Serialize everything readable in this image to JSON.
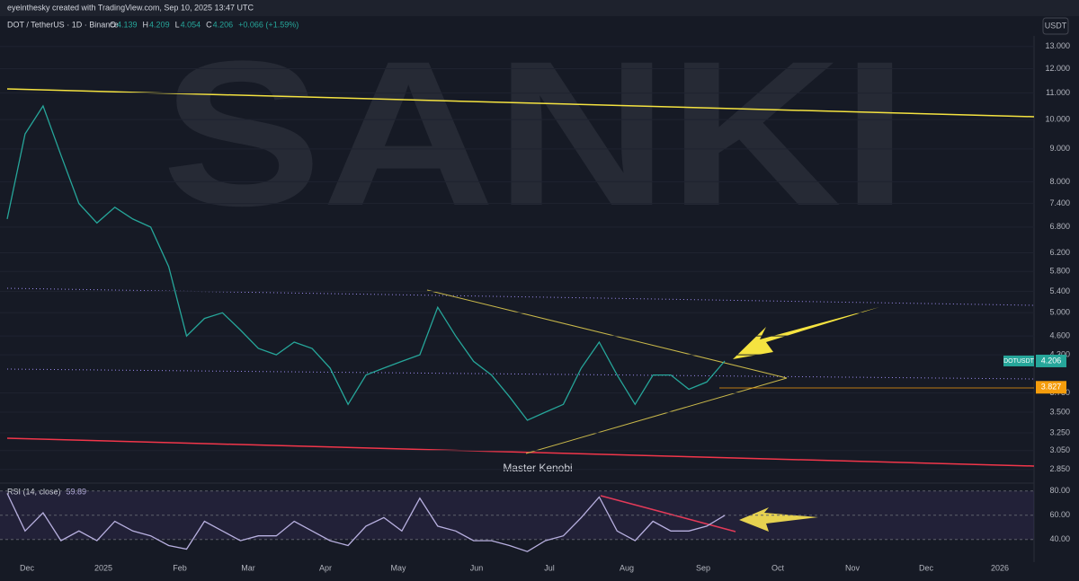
{
  "header": {
    "credit": "eyeinthesky created with TradingView.com, Sep 10, 2025 13:47 UTC",
    "symbol": "DOT / TetherUS · 1D · Binance",
    "ohlc": [
      {
        "label": "O",
        "value": "4.139"
      },
      {
        "label": "H",
        "value": "4.209"
      },
      {
        "label": "L",
        "value": "4.054"
      },
      {
        "label": "C",
        "value": "4.206"
      }
    ],
    "change": "+0.066 (+1.59%)"
  },
  "watermark": "SANKI",
  "currency": "USDT",
  "annotation": "Master Kenobi",
  "xticks": [
    "Dec",
    "2025",
    "Feb",
    "Mar",
    "Apr",
    "May",
    "Jun",
    "Jul",
    "Aug",
    "Sep",
    "Oct",
    "Nov",
    "Dec",
    "2026"
  ],
  "chart_data": [
    {
      "type": "line",
      "log_scale": true,
      "color": "#26a69a",
      "values": [
        7.0,
        9.5,
        10.5,
        8.8,
        7.4,
        6.9,
        7.3,
        7.0,
        6.8,
        5.9,
        4.6,
        4.9,
        5.0,
        4.7,
        4.4,
        4.3,
        4.5,
        4.4,
        4.1,
        3.6,
        4.0,
        4.1,
        4.2,
        4.3,
        5.1,
        4.6,
        4.2,
        4.0,
        3.7,
        3.4,
        3.5,
        3.6,
        4.1,
        4.5,
        4.0,
        3.6,
        4.0,
        4.0,
        3.8,
        3.9,
        4.206
      ],
      "ylim": [
        2.74,
        13.5
      ],
      "yticks": [
        {
          "value": 13,
          "label": "13.000"
        },
        {
          "value": 12,
          "label": "12.000"
        },
        {
          "value": 11,
          "label": "11.000"
        },
        {
          "value": 10,
          "label": "10.000"
        },
        {
          "value": 9,
          "label": "9.000"
        },
        {
          "value": 8,
          "label": "8.000"
        },
        {
          "value": 7.4,
          "label": "7.400"
        },
        {
          "value": 6.8,
          "label": "6.800"
        },
        {
          "value": 6.2,
          "label": "6.200"
        },
        {
          "value": 5.8,
          "label": "5.800"
        },
        {
          "value": 5.4,
          "label": "5.400"
        },
        {
          "value": 5,
          "label": "5.000"
        },
        {
          "value": 4.6,
          "label": "4.600"
        },
        {
          "value": 4.3,
          "label": "4.300"
        },
        {
          "value": 3.75,
          "label": "3.750"
        },
        {
          "value": 3.5,
          "label": "3.500"
        },
        {
          "value": 3.25,
          "label": "3.250"
        },
        {
          "value": 3.05,
          "label": "3.050"
        },
        {
          "value": 2.85,
          "label": "2.850"
        }
      ],
      "price_tags": [
        {
          "name": "DOTUSDT",
          "value": 4.206,
          "color": "#26a69a"
        },
        {
          "value": 3.827,
          "color": "#f59d0c"
        }
      ]
    },
    {
      "type": "line",
      "title": "RSI (14, close)",
      "color": "#b8b0e0",
      "last": 59.89,
      "values": [
        78,
        47,
        62,
        39,
        47,
        39,
        55,
        47,
        43,
        35,
        32,
        55,
        47,
        39,
        43,
        43,
        55,
        47,
        39,
        35,
        51,
        58,
        47,
        74,
        51,
        47,
        39,
        39,
        35,
        30,
        39,
        43,
        58,
        75,
        47,
        39,
        55,
        47,
        47,
        51,
        59.89
      ],
      "ylim": [
        22,
        85
      ],
      "yticks": [
        {
          "value": 80,
          "label": "80.00"
        },
        {
          "value": 60,
          "label": "60.00"
        },
        {
          "value": 40,
          "label": "40.00"
        }
      ]
    }
  ]
}
